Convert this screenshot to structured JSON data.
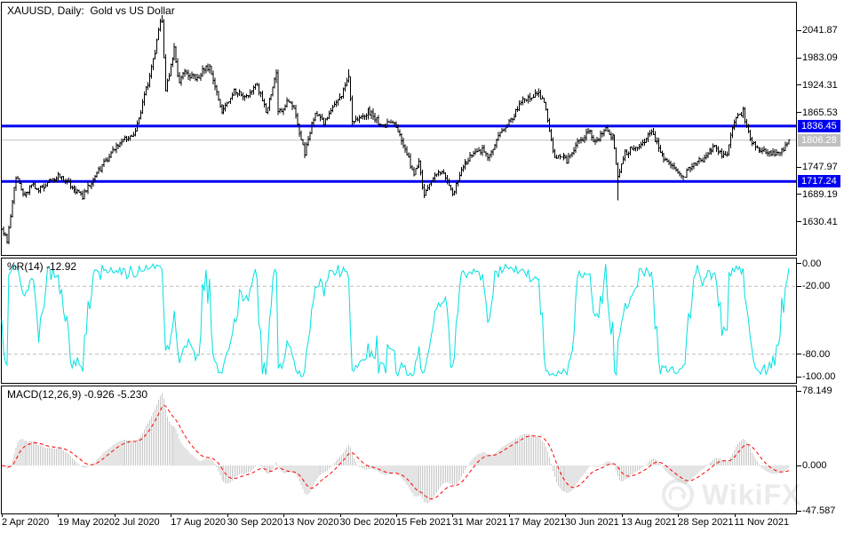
{
  "window": {
    "background": "#FFFFFF",
    "watermark": {
      "text": "WikiFX",
      "icon": "circular-arrow-logo-icon",
      "color": "#EBEBEB"
    }
  },
  "chart_data": [
    {
      "type": "ohlc-bar",
      "panel": "price",
      "title": "XAUUSD, Daily:  Gold vs US Dollar",
      "symbol": "XAUUSD",
      "timeframe": "Daily",
      "description": "Gold vs US Dollar",
      "bar_color": "#000000",
      "bars": 448,
      "bar_spacing_px": 1.982,
      "ylim": [
        1559,
        2104
      ],
      "price_anchors": [
        [
          0,
          1613
        ],
        [
          3,
          1590
        ],
        [
          8,
          1727
        ],
        [
          13,
          1685
        ],
        [
          17,
          1715
        ],
        [
          21,
          1700
        ],
        [
          26,
          1715
        ],
        [
          32,
          1732
        ],
        [
          39,
          1709
        ],
        [
          46,
          1685
        ],
        [
          52,
          1723
        ],
        [
          59,
          1761
        ],
        [
          63,
          1780
        ],
        [
          69,
          1809
        ],
        [
          75,
          1812
        ],
        [
          81,
          1900
        ],
        [
          86,
          1975
        ],
        [
          90,
          2063
        ],
        [
          91,
          2060
        ],
        [
          93,
          1911
        ],
        [
          98,
          2001
        ],
        [
          101,
          1928
        ],
        [
          104,
          1953
        ],
        [
          110,
          1940
        ],
        [
          118,
          1965
        ],
        [
          122,
          1908
        ],
        [
          125,
          1868
        ],
        [
          128,
          1885
        ],
        [
          132,
          1913
        ],
        [
          139,
          1901
        ],
        [
          145,
          1925
        ],
        [
          150,
          1867
        ],
        [
          153,
          1908
        ],
        [
          156,
          1951
        ],
        [
          157,
          1863
        ],
        [
          162,
          1889
        ],
        [
          166,
          1870
        ],
        [
          172,
          1776
        ],
        [
          178,
          1870
        ],
        [
          183,
          1840
        ],
        [
          187,
          1876
        ],
        [
          192,
          1895
        ],
        [
          197,
          1944
        ],
        [
          199,
          1849
        ],
        [
          204,
          1855
        ],
        [
          208,
          1869
        ],
        [
          212,
          1855
        ],
        [
          216,
          1837
        ],
        [
          222,
          1843
        ],
        [
          226,
          1823
        ],
        [
          229,
          1784
        ],
        [
          234,
          1734
        ],
        [
          237,
          1755
        ],
        [
          240,
          1683
        ],
        [
          244,
          1720
        ],
        [
          248,
          1737
        ],
        [
          252,
          1727
        ],
        [
          256,
          1686
        ],
        [
          260,
          1730
        ],
        [
          263,
          1756
        ],
        [
          268,
          1776
        ],
        [
          273,
          1784
        ],
        [
          277,
          1770
        ],
        [
          284,
          1831
        ],
        [
          288,
          1843
        ],
        [
          292,
          1869
        ],
        [
          297,
          1896
        ],
        [
          301,
          1900
        ],
        [
          305,
          1908
        ],
        [
          309,
          1877
        ],
        [
          314,
          1763
        ],
        [
          318,
          1775
        ],
        [
          321,
          1761
        ],
        [
          326,
          1796
        ],
        [
          330,
          1810
        ],
        [
          333,
          1829
        ],
        [
          337,
          1802
        ],
        [
          343,
          1828
        ],
        [
          347,
          1814
        ],
        [
          350,
          1729
        ],
        [
          354,
          1778
        ],
        [
          358,
          1787
        ],
        [
          363,
          1791
        ],
        [
          366,
          1809
        ],
        [
          369,
          1828
        ],
        [
          373,
          1790
        ],
        [
          378,
          1756
        ],
        [
          382,
          1745
        ],
        [
          387,
          1726
        ],
        [
          390,
          1745
        ],
        [
          394,
          1757
        ],
        [
          399,
          1768
        ],
        [
          404,
          1792
        ],
        [
          408,
          1777
        ],
        [
          412,
          1774
        ],
        [
          414,
          1815
        ],
        [
          417,
          1850
        ],
        [
          421,
          1867
        ],
        [
          425,
          1805
        ],
        [
          429,
          1788
        ],
        [
          434,
          1783
        ],
        [
          438,
          1775
        ],
        [
          442,
          1777
        ],
        [
          445,
          1791
        ],
        [
          447,
          1806.28
        ]
      ],
      "spikes": [
        {
          "i": 91,
          "high": 2075
        },
        {
          "i": 197,
          "high": 1959
        },
        {
          "i": 350,
          "low": 1677
        }
      ],
      "horizontal_levels": [
        {
          "value": 1836.45,
          "label": "1836.45",
          "color": "#0000F0",
          "width": 3
        },
        {
          "value": 1717.24,
          "label": "1717.24",
          "color": "#0000F0",
          "width": 3
        }
      ],
      "current_price": {
        "value": 1806.28,
        "label": "1806.28",
        "line_color": "#C0C0C0",
        "badge_color": "#C0C0C0"
      },
      "y_ticks": [
        "2041.87",
        "1983.09",
        "1924.31",
        "1865.53",
        "1747.97",
        "1689.19",
        "1630.41"
      ],
      "y_tick_values": [
        2041.87,
        1983.09,
        1924.31,
        1865.53,
        1747.97,
        1689.19,
        1630.41
      ],
      "x_ticks": [
        "2 Apr 2020",
        "19 May 2020",
        "2 Jul 2020",
        "17 Aug 2020",
        "30 Sep 2020",
        "13 Nov 2020",
        "30 Dec 2020",
        "15 Feb 2021",
        "31 Mar 2021",
        "17 May 2021",
        "30 Jun 2021",
        "13 Aug 2021",
        "28 Sep 2021",
        "11 Nov 2021"
      ],
      "x_tick_bar_interval": 32
    },
    {
      "type": "line",
      "panel": "williams_percent_r",
      "label": "%R(14) -12.92",
      "indicator": "Williams %R",
      "period": 14,
      "current_value": -12.92,
      "line_color": "#00E0E0",
      "dashed_levels": [
        -20,
        -80
      ],
      "dashed_level_color": "#BDBDBD",
      "y_ticks": [
        "0.00",
        "-20.00",
        "-80.00",
        "-100.00"
      ],
      "y_tick_values": [
        0,
        -20,
        -80,
        -100
      ],
      "ylim": [
        -104.5,
        4.5
      ]
    },
    {
      "type": "histogram_line",
      "panel": "macd",
      "label": "MACD(12,26,9) -0.926 -5.230",
      "indicator": "MACD",
      "fast_ema": 12,
      "slow_ema": 26,
      "signal_ema": 9,
      "macd_value": -0.926,
      "signal_value": -5.23,
      "histogram_color": "#C9C9C9",
      "signal_color": "#FF0000",
      "y_ticks": [
        "78.149",
        "0.000",
        "-47.587"
      ],
      "y_tick_values": [
        78.149,
        0,
        -47.587
      ],
      "ylim": [
        -51.5,
        84
      ]
    }
  ]
}
